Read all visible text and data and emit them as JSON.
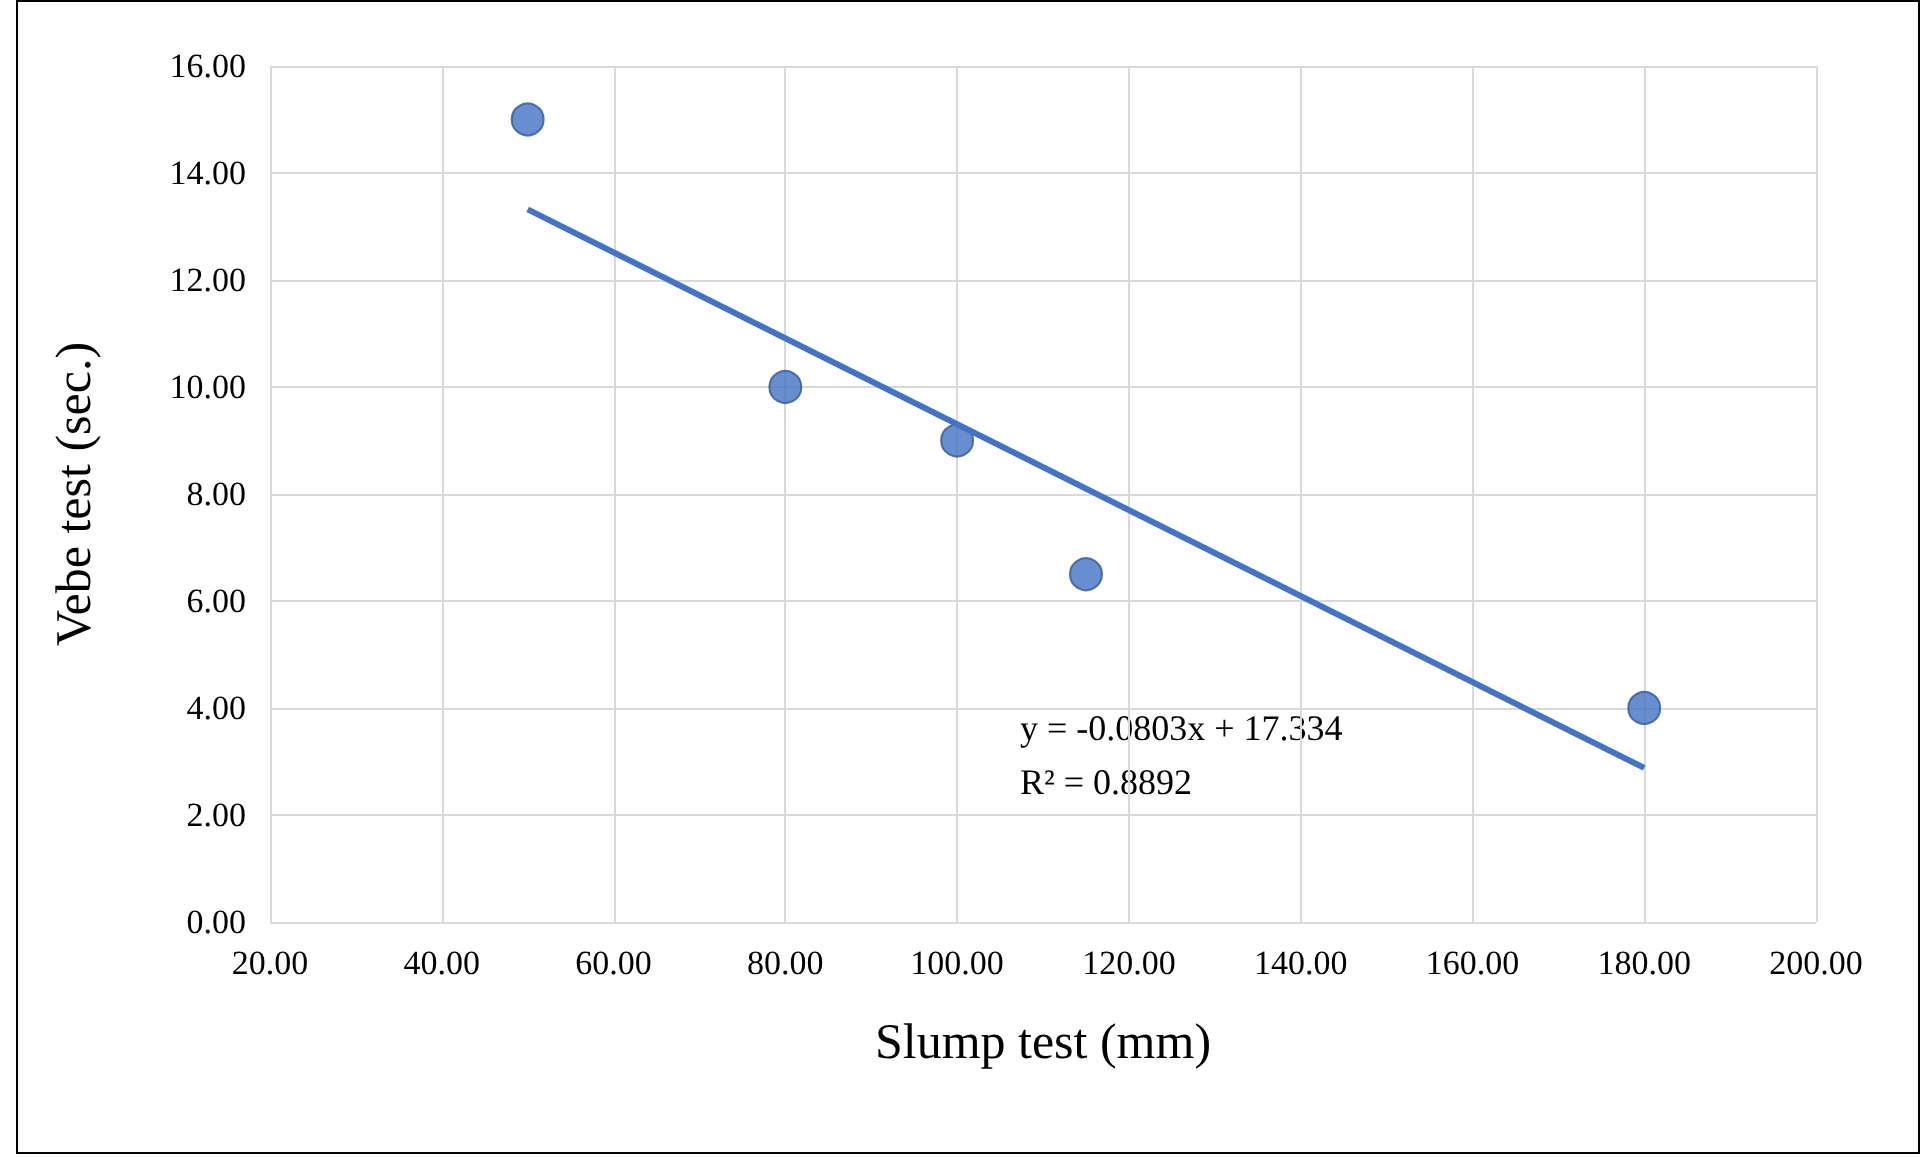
{
  "chart_data": {
    "type": "scatter",
    "xlabel": "Slump test (mm)",
    "ylabel": "Vebe test (sec.)",
    "x": [
      50,
      80,
      100,
      115,
      180
    ],
    "series": [
      {
        "color": "#4472c4",
        "values": [
          15,
          10,
          9,
          6.5,
          4
        ]
      },
      {
        "type": "line",
        "color": "#4472c4",
        "x": [
          50,
          180
        ],
        "values": [
          13.32,
          2.88
        ],
        "marker": "none"
      }
    ],
    "marker": "circle",
    "grid": true,
    "xlim": [
      20,
      200
    ],
    "xticks": [
      {
        "value": 20,
        "label": "20.00"
      },
      {
        "value": 40,
        "label": "40.00"
      },
      {
        "value": 60,
        "label": "60.00"
      },
      {
        "value": 80,
        "label": "80.00"
      },
      {
        "value": 100,
        "label": "100.00"
      },
      {
        "value": 120,
        "label": "120.00"
      },
      {
        "value": 140,
        "label": "140.00"
      },
      {
        "value": 160,
        "label": "160.00"
      },
      {
        "value": 180,
        "label": "180.00"
      },
      {
        "value": 200,
        "label": "200.00"
      }
    ],
    "ylim": [
      0,
      16
    ],
    "yticks": [
      {
        "value": 0,
        "label": "0.00"
      },
      {
        "value": 2,
        "label": "2.00"
      },
      {
        "value": 4,
        "label": "4.00"
      },
      {
        "value": 6,
        "label": "6.00"
      },
      {
        "value": 8,
        "label": "8.00"
      },
      {
        "value": 10,
        "label": "10.00"
      },
      {
        "value": 12,
        "label": "12.00"
      },
      {
        "value": 14,
        "label": "14.00"
      },
      {
        "value": 16,
        "label": "16.00"
      }
    ],
    "annotations": [
      "y = -0.0803x + 17.334",
      "R² = 0.8892"
    ]
  }
}
